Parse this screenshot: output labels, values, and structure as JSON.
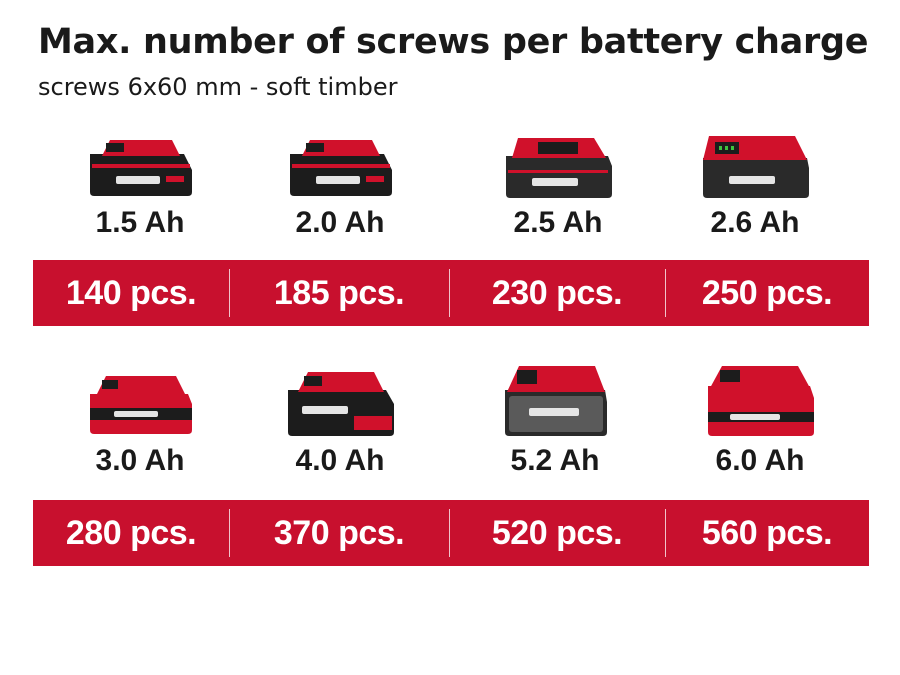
{
  "title": "Max. number of screws per battery charge",
  "subtitle": "screws 6x60 mm - soft timber",
  "colors": {
    "band": "#c8102e",
    "battery_red": "#d0112b",
    "battery_black": "#1c1c1c"
  },
  "rows": [
    {
      "batteries": [
        {
          "capacity": "1.5 Ah",
          "count": "140 pcs.",
          "icon": "battery-pack-icon"
        },
        {
          "capacity": "2.0 Ah",
          "count": "185 pcs.",
          "icon": "battery-pack-icon"
        },
        {
          "capacity": "2.5 Ah",
          "count": "230 pcs.",
          "icon": "battery-pack-icon"
        },
        {
          "capacity": "2.6 Ah",
          "count": "250 pcs.",
          "icon": "battery-pack-icon"
        }
      ]
    },
    {
      "batteries": [
        {
          "capacity": "3.0 Ah",
          "count": "280 pcs.",
          "icon": "battery-pack-icon"
        },
        {
          "capacity": "4.0 Ah",
          "count": "370 pcs.",
          "icon": "battery-pack-icon"
        },
        {
          "capacity": "5.2 Ah",
          "count": "520 pcs.",
          "icon": "battery-pack-icon"
        },
        {
          "capacity": "6.0 Ah",
          "count": "560 pcs.",
          "icon": "battery-pack-icon"
        }
      ]
    }
  ]
}
